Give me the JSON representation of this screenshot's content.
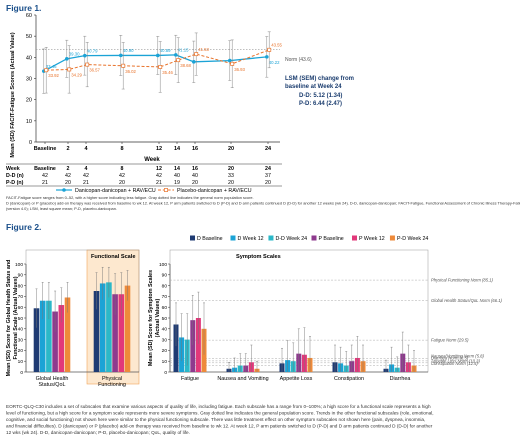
{
  "figure1": {
    "title": "Figure 1.",
    "ylabel": "Mean (SD) FACIT-Fatigue Scores (Actual Value)",
    "xlabel": "Week",
    "norm_label": "Norm (43.6)",
    "lsm_title": "LSM (SEM) change from baseline at Week 24",
    "lsm_dd": "D-D: 5.12 (1.34)",
    "lsm_pd": "P-D: 6.44 (2.47)",
    "table_rows": [
      {
        "label": "Week",
        "values": [
          "Baseline",
          "2",
          "4",
          "8",
          "12",
          "14",
          "16",
          "20",
          "24"
        ]
      },
      {
        "label": "D-D (n)",
        "values": [
          "42",
          "42",
          "42",
          "42",
          "42",
          "40",
          "40",
          "33",
          "37"
        ]
      },
      {
        "label": "P-D (n)",
        "values": [
          "21",
          "20",
          "21",
          "20",
          "21",
          "19",
          "20",
          "20",
          "20"
        ]
      }
    ],
    "legend": [
      "Danicopan-danicopan + RAV/ECU",
      "Placebo-danicopan + RAV/ECU"
    ],
    "caption": "FACIT-Fatigue score ranges from 0–52, with a higher score indicating less fatigue. Gray dotted line indicates the general norm population score. D (danicopan) or P (placebo) add-on therapy was received from baseline to wk 12. At week 12, P arm patients switched to D (P-D) and D arm patients continued D (D-D) for another 12 weeks (wk 24). D-D, danicopan-danicopan; FACIT-Fatigue, Functional Assessment of Chronic Illness Therapy-Fatigue scale (version 4.0); LSM, least square mean; P-D, placebo-danicopan."
  },
  "figure2": {
    "title": "Figure 2.",
    "left_ylabel": "Mean (SD) Score for Global Health Status and Functional Scale (Actual Values)",
    "right_ylabel": "Mean (SD) Score for Symptom Scales (Actual Values)",
    "functional_header": "Functional Scale",
    "symptom_header": "Symptom Scales",
    "legend": [
      "D Baseline",
      "D Week 12",
      "D-D Week 24",
      "P Baseline",
      "P Week 12",
      "P-D Week 24"
    ],
    "norm_labels": [
      "Physical Functioning Norm (85.1)",
      "Global Health Status/QoL Norm (66.1)",
      "Fatigue Norm (29.5)",
      "Constipation Norm (12.5)",
      "Appetite Loss Norm (10.3)",
      "Diarrhea Norm (8.5)",
      "Nausea/Vomiting Norm (5.8)"
    ],
    "caption": "EORTC-QLQ-C30 includes a set of subscales that examine various aspects of quality of life, including fatigue. Each subscale has a range from 0–100%; a high score for a functional scale represents a high level of functioning, but a high score for a symptom scale represents more severe symptoms. Gray dotted line indicates the general population score. Trends in the other functional subscales (role, emotional, cognitive, and social functioning) not shown here were similar to the physical functioning subscale. There was little treatment effect on other symptom subscales not shown here (pain, dyspnea, insomnia, and financial difficulties). D (danicopan) or P (placebo) add-on therapy was received from baseline to wk 12. At week 12, P arm patients switched to D (P-D) and D arm patients continued D (D-D) for another 12 wks (wk 24). D-D, danicopan-danicopan; P-D, placebo-danicopan; QoL, quality of life."
  },
  "chart_data": [
    {
      "type": "line",
      "title": "Figure 1.",
      "xlabel": "Week",
      "ylabel": "Mean (SD) FACIT-Fatigue Scores (Actual Value)",
      "x": [
        "Baseline",
        "2",
        "4",
        "8",
        "12",
        "14",
        "16",
        "20",
        "24"
      ],
      "ylim": [
        0,
        60
      ],
      "yticks": [
        0,
        10,
        20,
        30,
        40,
        50,
        60
      ],
      "norm": 43.6,
      "series": [
        {
          "name": "Danicopan-danicopan + RAV/ECU",
          "color": "#1ba3d6",
          "values": [
            33.46,
            39.3,
            40.79,
            40.9,
            40.89,
            41.15,
            37.88,
            38.46,
            40.22
          ],
          "sd": [
            10.5,
            8.8,
            9.2,
            9.5,
            9.0,
            9.3,
            9.8,
            9.4,
            9.6
          ]
        },
        {
          "name": "Placebo-danicopan + RAV/ECU",
          "color": "#e8722a",
          "values": [
            33.92,
            34.29,
            36.57,
            36.02,
            35.46,
            38.68,
            41.53,
            36.93,
            43.55
          ],
          "sd": [
            10.8,
            11.2,
            10.5,
            11.0,
            12.0,
            10.6,
            10.0,
            11.3,
            8.5
          ]
        }
      ],
      "labels_shown": {
        "Danicopan-danicopan + RAV/ECU": [
          "33.46",
          "39.30",
          "40.79",
          "40.90",
          "40.89",
          "41.15",
          "",
          "",
          "40.22"
        ],
        "Placebo-danicopan + RAV/ECU": [
          "33.92",
          "34.29",
          "36.57",
          "36.02",
          "35.46",
          "38.68",
          "41.53",
          "36.93",
          "43.55"
        ]
      }
    },
    {
      "type": "bar",
      "title": "Functional Scale",
      "ylabel": "Mean (SD) Score for Global Health Status and Functional Scale (Actual Values)",
      "categories": [
        "Global Health Status/QoL",
        "Physical Functioning"
      ],
      "ylim": [
        0,
        100
      ],
      "yticks": [
        0,
        10,
        20,
        30,
        40,
        50,
        60,
        70,
        80,
        90,
        100
      ],
      "series": [
        {
          "name": "D Baseline",
          "color": "#1f3b73",
          "values": [
            59,
            75
          ],
          "sd": [
            18,
            17
          ]
        },
        {
          "name": "D Week 12",
          "color": "#1ba3d6",
          "values": [
            66,
            82
          ],
          "sd": [
            17,
            15
          ]
        },
        {
          "name": "D-D Week 24",
          "color": "#2bb8c8",
          "values": [
            66,
            83
          ],
          "sd": [
            17,
            14
          ]
        },
        {
          "name": "P Baseline",
          "color": "#8e3a8e",
          "values": [
            56,
            72
          ],
          "sd": [
            19,
            19
          ]
        },
        {
          "name": "P Week 12",
          "color": "#e2387a",
          "values": [
            62,
            72
          ],
          "sd": [
            16,
            20
          ]
        },
        {
          "name": "P-D Week 24",
          "color": "#ee8a3a",
          "values": [
            69,
            80
          ],
          "sd": [
            14,
            14
          ]
        }
      ],
      "norms": [
        {
          "label": "Global Health Status/QoL Norm (66.1)",
          "value": 66.1
        },
        {
          "label": "Physical Functioning Norm (85.1)",
          "value": 85.1
        }
      ]
    },
    {
      "type": "bar",
      "title": "Symptom Scales",
      "ylabel": "Mean (SD) Score for Symptom Scales (Actual Values)",
      "categories": [
        "Fatigue",
        "Nausea and Vomiting",
        "Appetite Loss",
        "Constipation",
        "Diarrhea"
      ],
      "ylim": [
        0,
        100
      ],
      "yticks": [
        0,
        10,
        20,
        30,
        40,
        50,
        60,
        70,
        80,
        90,
        100
      ],
      "series": [
        {
          "name": "D Baseline",
          "color": "#1f3b73",
          "values": [
            44,
            3,
            8,
            9,
            3
          ],
          "sd": [
            20,
            6,
            14,
            16,
            8
          ]
        },
        {
          "name": "D Week 12",
          "color": "#1ba3d6",
          "values": [
            32,
            4,
            11,
            8,
            7
          ],
          "sd": [
            22,
            9,
            18,
            15,
            16
          ]
        },
        {
          "name": "D-D Week 24",
          "color": "#2bb8c8",
          "values": [
            30,
            6,
            10,
            6,
            4
          ],
          "sd": [
            24,
            11,
            17,
            13,
            10
          ]
        },
        {
          "name": "P Baseline",
          "color": "#8e3a8e",
          "values": [
            48,
            6,
            17,
            10,
            17
          ],
          "sd": [
            23,
            11,
            23,
            15,
            20
          ]
        },
        {
          "name": "P Week 12",
          "color": "#e2387a",
          "values": [
            50,
            9,
            16,
            13,
            9
          ],
          "sd": [
            24,
            16,
            25,
            20,
            16
          ]
        },
        {
          "name": "P-D Week 24",
          "color": "#ee8a3a",
          "values": [
            40,
            3,
            13,
            10,
            6
          ],
          "sd": [
            24,
            7,
            20,
            15,
            14
          ]
        }
      ],
      "norms": [
        {
          "label": "Physical Functioning Norm (85.1)",
          "value": 85.1
        },
        {
          "label": "Global Health Status/QoL Norm (66.1)",
          "value": 66.1
        },
        {
          "label": "Fatigue Norm (29.5)",
          "value": 29.5
        },
        {
          "label": "Constipation Norm (12.5)",
          "value": 12.5
        },
        {
          "label": "Appetite Loss Norm (10.3)",
          "value": 10.3
        },
        {
          "label": "Diarrhea Norm (8.5)",
          "value": 8.5
        },
        {
          "label": "Nausea/Vomiting Norm (5.8)",
          "value": 5.8
        }
      ]
    }
  ]
}
